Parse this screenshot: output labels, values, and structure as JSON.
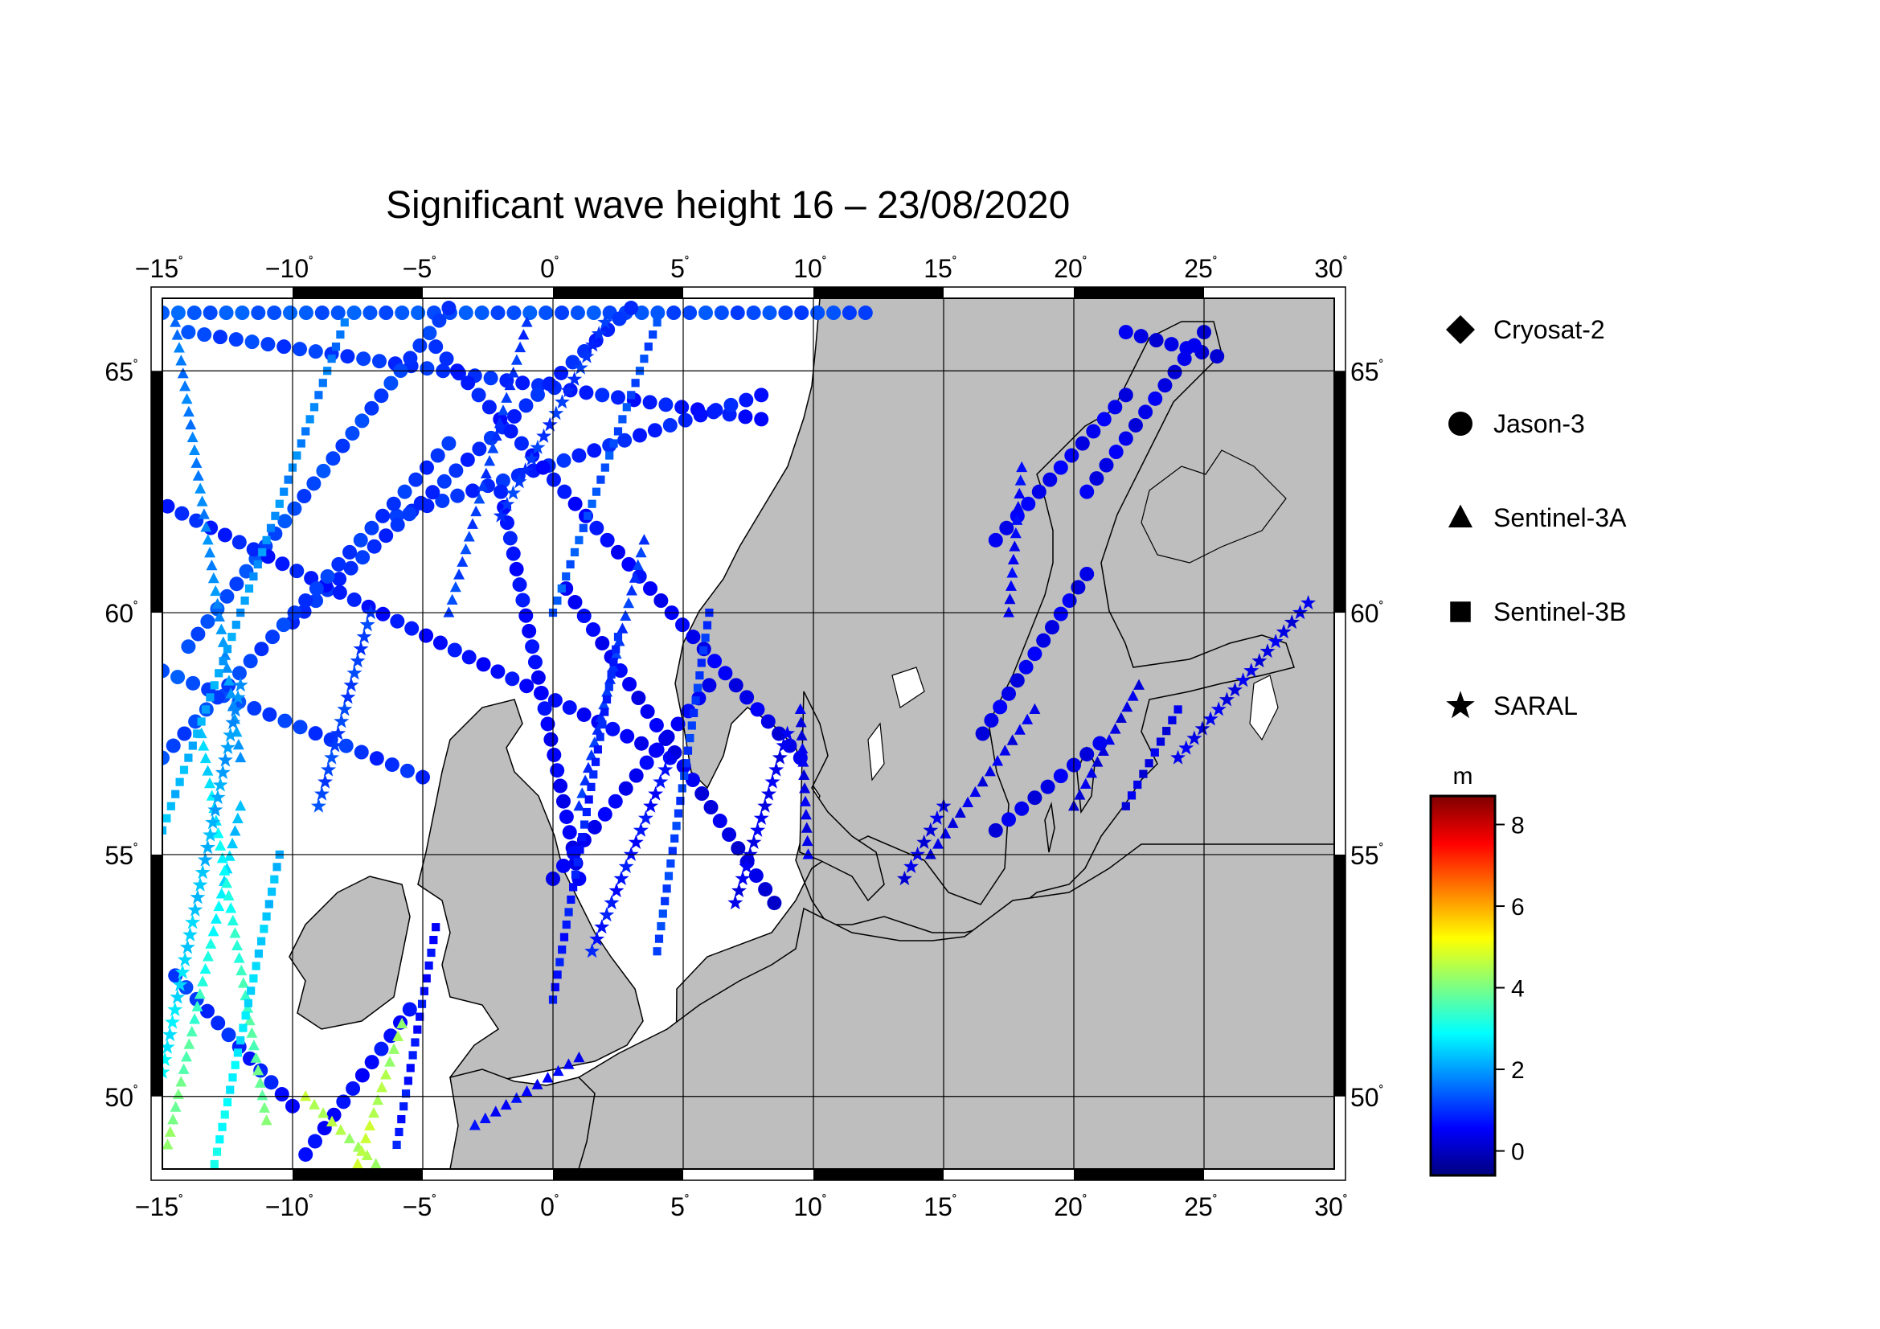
{
  "title": "Significant wave height 16 – 23/08/2020",
  "map": {
    "lon_range": [
      -15,
      30
    ],
    "lat_range": [
      48.5,
      66.5
    ],
    "lon_ticks": [
      {
        "value": -15,
        "label": "−15"
      },
      {
        "value": -10,
        "label": "−10"
      },
      {
        "value": -5,
        "label": "−5"
      },
      {
        "value": 0,
        "label": "0"
      },
      {
        "value": 5,
        "label": "5"
      },
      {
        "value": 10,
        "label": "10"
      },
      {
        "value": 15,
        "label": "15"
      },
      {
        "value": 20,
        "label": "20"
      },
      {
        "value": 25,
        "label": "25"
      },
      {
        "value": 30,
        "label": "30"
      }
    ],
    "lat_ticks": [
      {
        "value": 50,
        "label": "50"
      },
      {
        "value": 55,
        "label": "55"
      },
      {
        "value": 60,
        "label": "60"
      },
      {
        "value": 65,
        "label": "65"
      }
    ],
    "degree_symbol": "˚",
    "colors": {
      "ocean": "#ffffff",
      "land": "#bebebe",
      "coast": "#000000",
      "grid": "#000000"
    }
  },
  "legend": [
    {
      "symbol": "diamond",
      "label": "Cryosat-2"
    },
    {
      "symbol": "circle",
      "label": "Jason-3"
    },
    {
      "symbol": "triangle",
      "label": "Sentinel-3A"
    },
    {
      "symbol": "square",
      "label": "Sentinel-3B"
    },
    {
      "symbol": "star",
      "label": "SARAL"
    }
  ],
  "colorbar": {
    "unit": "m",
    "range": [
      -0.6,
      8.7
    ],
    "ticks": [
      0,
      2,
      4,
      6,
      8
    ],
    "colormap": "jet"
  },
  "chart_data": {
    "type": "scatter",
    "title": "Significant wave height 16 – 23/08/2020",
    "x_variable": "longitude",
    "y_variable": "latitude",
    "value_variable": "significant wave height (m)",
    "xlim": [
      -15,
      30
    ],
    "ylim": [
      48.5,
      66.5
    ],
    "tracks": [
      {
        "satellite": "Jason-3",
        "symbol": "circle",
        "start": [
          -15,
          66.2
        ],
        "end": [
          12,
          66.2
        ],
        "value_start": 1.4,
        "value_end": 1.2
      },
      {
        "satellite": "Jason-3",
        "symbol": "circle",
        "start": [
          -14,
          65.8
        ],
        "end": [
          8,
          64.0
        ],
        "value_start": 1.2,
        "value_end": 0.7
      },
      {
        "satellite": "Jason-3",
        "symbol": "circle",
        "start": [
          -6,
          62.0
        ],
        "end": [
          8,
          64.5
        ],
        "value_start": 1.0,
        "value_end": 0.8
      },
      {
        "satellite": "Jason-3",
        "symbol": "circle",
        "start": [
          -14,
          59.3
        ],
        "end": [
          -4,
          66.3
        ],
        "value_start": 1.3,
        "value_end": 1.1
      },
      {
        "satellite": "Jason-3",
        "symbol": "circle",
        "start": [
          -10,
          59.8
        ],
        "end": [
          3,
          66.3
        ],
        "value_start": 1.0,
        "value_end": 0.9
      },
      {
        "satellite": "Jason-3",
        "symbol": "circle",
        "start": [
          -14.8,
          62.2
        ],
        "end": [
          4.5,
          57.0
        ],
        "value_start": 0.9,
        "value_end": 0.5
      },
      {
        "satellite": "Jason-3",
        "symbol": "circle",
        "start": [
          -15,
          58.8
        ],
        "end": [
          -5,
          56.6
        ],
        "value_start": 1.3,
        "value_end": 0.9
      },
      {
        "satellite": "Jason-3",
        "symbol": "circle",
        "start": [
          -4.5,
          65.5
        ],
        "end": [
          9.5,
          57.0
        ],
        "value_start": 0.9,
        "value_end": 0.3
      },
      {
        "satellite": "Jason-3",
        "symbol": "circle",
        "start": [
          -15,
          57.0
        ],
        "end": [
          -4,
          63.5
        ],
        "value_start": 1.2,
        "value_end": 1.0
      },
      {
        "satellite": "Jason-3",
        "symbol": "circle",
        "start": [
          -2,
          62.5
        ],
        "end": [
          1,
          54.5
        ],
        "value_start": 0.8,
        "value_end": 0.4
      },
      {
        "satellite": "Jason-3",
        "symbol": "circle",
        "start": [
          0.5,
          60.5
        ],
        "end": [
          8.5,
          54.0
        ],
        "value_start": 0.6,
        "value_end": 0.2
      },
      {
        "satellite": "Jason-3",
        "symbol": "circle",
        "start": [
          0,
          54.5
        ],
        "end": [
          6,
          58.5
        ],
        "value_start": 0.5,
        "value_end": 0.5
      },
      {
        "satellite": "Jason-3",
        "symbol": "circle",
        "start": [
          -14.5,
          52.5
        ],
        "end": [
          -10,
          49.8
        ],
        "value_start": 1.1,
        "value_end": 0.7
      },
      {
        "satellite": "Jason-3",
        "symbol": "circle",
        "start": [
          -9.5,
          48.8
        ],
        "end": [
          -5.5,
          51.8
        ],
        "value_start": 0.6,
        "value_end": 0.7
      },
      {
        "satellite": "Jason-3",
        "symbol": "circle",
        "start": [
          22,
          65.8
        ],
        "end": [
          25.5,
          65.3
        ],
        "value_start": 0.3,
        "value_end": 0.3
      },
      {
        "satellite": "Jason-3",
        "symbol": "circle",
        "start": [
          20.5,
          62.5
        ],
        "end": [
          25,
          65.8
        ],
        "value_start": 0.4,
        "value_end": 0.3
      },
      {
        "satellite": "Jason-3",
        "symbol": "circle",
        "start": [
          17,
          61.5
        ],
        "end": [
          22,
          64.5
        ],
        "value_start": 0.5,
        "value_end": 0.4
      },
      {
        "satellite": "Jason-3",
        "symbol": "circle",
        "start": [
          16.5,
          57.5
        ],
        "end": [
          20.5,
          60.8
        ],
        "value_start": 0.4,
        "value_end": 0.4
      },
      {
        "satellite": "Jason-3",
        "symbol": "circle",
        "start": [
          17,
          55.5
        ],
        "end": [
          21,
          57.3
        ],
        "value_start": 0.3,
        "value_end": 0.4
      },
      {
        "satellite": "Sentinel-3A",
        "symbol": "triangle",
        "start": [
          -14.8,
          49.0
        ],
        "end": [
          -12,
          56.0
        ],
        "value_start": 4.2,
        "value_end": 2.2
      },
      {
        "satellite": "Sentinel-3A",
        "symbol": "triangle",
        "start": [
          -11,
          49.5
        ],
        "end": [
          -13.5,
          57.5
        ],
        "value_start": 4.0,
        "value_end": 2.4
      },
      {
        "satellite": "Sentinel-3A",
        "symbol": "triangle",
        "start": [
          -9.5,
          50.0
        ],
        "end": [
          -6.8,
          48.6
        ],
        "value_start": 4.6,
        "value_end": 4.3
      },
      {
        "satellite": "Sentinel-3A",
        "symbol": "triangle",
        "start": [
          -7.5,
          48.6
        ],
        "end": [
          -5.8,
          51.5
        ],
        "value_start": 4.8,
        "value_end": 4.2
      },
      {
        "satellite": "Sentinel-3A",
        "symbol": "triangle",
        "start": [
          -12,
          57.0
        ],
        "end": [
          -14.5,
          66.0
        ],
        "value_start": 2.0,
        "value_end": 1.6
      },
      {
        "satellite": "Sentinel-3A",
        "symbol": "triangle",
        "start": [
          -4,
          60.0
        ],
        "end": [
          -1,
          66.0
        ],
        "value_start": 1.2,
        "value_end": 1.0
      },
      {
        "satellite": "Sentinel-3A",
        "symbol": "triangle",
        "start": [
          1,
          56.0
        ],
        "end": [
          3.5,
          61.5
        ],
        "value_start": 1.0,
        "value_end": 1.1
      },
      {
        "satellite": "Sentinel-3A",
        "symbol": "triangle",
        "start": [
          -3,
          49.4
        ],
        "end": [
          1,
          50.8
        ],
        "value_start": 0.6,
        "value_end": 0.5
      },
      {
        "satellite": "Sentinel-3A",
        "symbol": "triangle",
        "start": [
          9.5,
          58.0
        ],
        "end": [
          9.8,
          55.0
        ],
        "value_start": 0.3,
        "value_end": 0.4
      },
      {
        "satellite": "Sentinel-3A",
        "symbol": "triangle",
        "start": [
          17.5,
          60.0
        ],
        "end": [
          18,
          63.0
        ],
        "value_start": 0.5,
        "value_end": 0.6
      },
      {
        "satellite": "Sentinel-3A",
        "symbol": "triangle",
        "start": [
          20,
          56.0
        ],
        "end": [
          22.5,
          58.5
        ],
        "value_start": 0.3,
        "value_end": 0.3
      },
      {
        "satellite": "Sentinel-3A",
        "symbol": "triangle",
        "start": [
          14.5,
          55.0
        ],
        "end": [
          18.5,
          58.0
        ],
        "value_start": 0.3,
        "value_end": 0.4
      },
      {
        "satellite": "Sentinel-3B",
        "symbol": "square",
        "start": [
          -15,
          55.5
        ],
        "end": [
          -8,
          66.0
        ],
        "value_start": 2.3,
        "value_end": 1.6
      },
      {
        "satellite": "Sentinel-3B",
        "symbol": "square",
        "start": [
          -13,
          48.6
        ],
        "end": [
          -10.5,
          55.0
        ],
        "value_start": 3.0,
        "value_end": 2.2
      },
      {
        "satellite": "Sentinel-3B",
        "symbol": "square",
        "start": [
          -6,
          49.0
        ],
        "end": [
          -4.5,
          53.5
        ],
        "value_start": 0.8,
        "value_end": 0.6
      },
      {
        "satellite": "Sentinel-3B",
        "symbol": "square",
        "start": [
          0,
          52.0
        ],
        "end": [
          2.5,
          59.5
        ],
        "value_start": 0.7,
        "value_end": 0.9
      },
      {
        "satellite": "Sentinel-3B",
        "symbol": "square",
        "start": [
          4,
          53.0
        ],
        "end": [
          6,
          60.0
        ],
        "value_start": 1.2,
        "value_end": 1.0
      },
      {
        "satellite": "Sentinel-3B",
        "symbol": "square",
        "start": [
          0,
          60.0
        ],
        "end": [
          4,
          66.0
        ],
        "value_start": 1.4,
        "value_end": 1.2
      },
      {
        "satellite": "Sentinel-3B",
        "symbol": "square",
        "start": [
          22,
          56.0
        ],
        "end": [
          24,
          58.0
        ],
        "value_start": 0.3,
        "value_end": 0.3
      },
      {
        "satellite": "SARAL",
        "symbol": "star",
        "start": [
          -15,
          50.5
        ],
        "end": [
          -12,
          58.5
        ],
        "value_start": 2.8,
        "value_end": 1.8
      },
      {
        "satellite": "SARAL",
        "symbol": "star",
        "start": [
          -9,
          56.0
        ],
        "end": [
          -7,
          60.0
        ],
        "value_start": 1.2,
        "value_end": 1.1
      },
      {
        "satellite": "SARAL",
        "symbol": "star",
        "start": [
          1.5,
          53.0
        ],
        "end": [
          4.5,
          57.0
        ],
        "value_start": 0.8,
        "value_end": 0.6
      },
      {
        "satellite": "SARAL",
        "symbol": "star",
        "start": [
          7,
          54.0
        ],
        "end": [
          9,
          57.5
        ],
        "value_start": 0.4,
        "value_end": 0.4
      },
      {
        "satellite": "SARAL",
        "symbol": "star",
        "start": [
          -2,
          62.0
        ],
        "end": [
          2,
          66.0
        ],
        "value_start": 1.1,
        "value_end": 1.0
      },
      {
        "satellite": "SARAL",
        "symbol": "star",
        "start": [
          13.5,
          54.5
        ],
        "end": [
          15,
          56.0
        ],
        "value_start": 0.3,
        "value_end": 0.3
      },
      {
        "satellite": "SARAL",
        "symbol": "star",
        "start": [
          24,
          57.0
        ],
        "end": [
          29,
          60.2
        ],
        "value_start": 0.4,
        "value_end": 0.3
      }
    ]
  }
}
